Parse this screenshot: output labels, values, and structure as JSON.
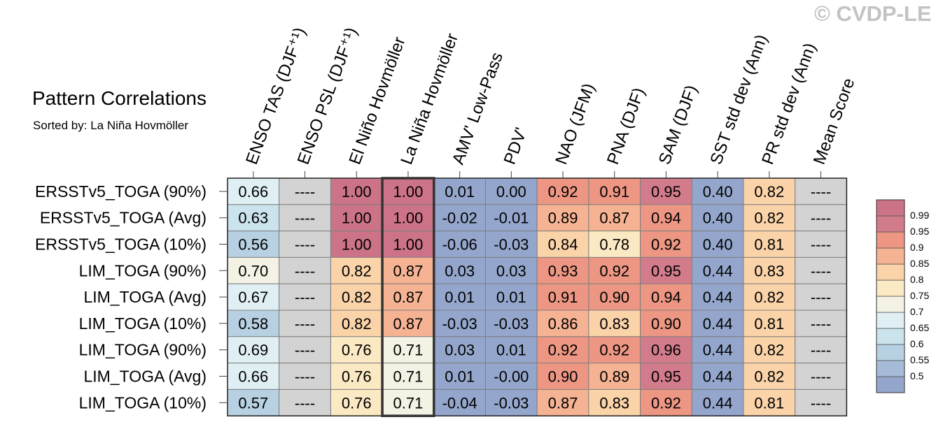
{
  "watermark": "© CVDP-LE",
  "title": "Pattern Correlations",
  "subtitle": "Sorted by: La Niña Hovmöller",
  "chart_data": {
    "type": "heatmap",
    "columns": [
      "ENSO TAS (DJF⁺¹)",
      "ENSO PSL (DJF⁺¹)",
      "El Niño Hovmöller",
      "La Niña Hovmöller",
      "AMV' Low-Pass",
      "PDV'",
      "NAO (JFM)",
      "PNA (DJF)",
      "SAM (DJF)",
      "SST std dev (Ann)",
      "PR std dev (Ann)",
      "Mean Score"
    ],
    "rows": [
      "ERSSTv5_TOGA (90%)",
      "ERSSTv5_TOGA (Avg)",
      "ERSSTv5_TOGA (10%)",
      "LIM_TOGA (90%)",
      "LIM_TOGA (Avg)",
      "LIM_TOGA (10%)",
      "LIM_TOGA (90%)",
      "LIM_TOGA (Avg)",
      "LIM_TOGA (10%)"
    ],
    "values": [
      [
        "0.66",
        "----",
        "1.00",
        "1.00",
        "0.01",
        "0.00",
        "0.92",
        "0.91",
        "0.95",
        "0.40",
        "0.82",
        "----"
      ],
      [
        "0.63",
        "----",
        "1.00",
        "1.00",
        "-0.02",
        "-0.01",
        "0.89",
        "0.87",
        "0.94",
        "0.40",
        "0.82",
        "----"
      ],
      [
        "0.56",
        "----",
        "1.00",
        "1.00",
        "-0.06",
        "-0.03",
        "0.84",
        "0.78",
        "0.92",
        "0.40",
        "0.81",
        "----"
      ],
      [
        "0.70",
        "----",
        "0.82",
        "0.87",
        "0.03",
        "0.03",
        "0.93",
        "0.92",
        "0.95",
        "0.44",
        "0.83",
        "----"
      ],
      [
        "0.67",
        "----",
        "0.82",
        "0.87",
        "0.01",
        "0.01",
        "0.91",
        "0.90",
        "0.94",
        "0.44",
        "0.82",
        "----"
      ],
      [
        "0.58",
        "----",
        "0.82",
        "0.87",
        "-0.03",
        "-0.03",
        "0.86",
        "0.83",
        "0.90",
        "0.44",
        "0.81",
        "----"
      ],
      [
        "0.69",
        "----",
        "0.76",
        "0.71",
        "0.03",
        "0.01",
        "0.92",
        "0.92",
        "0.96",
        "0.44",
        "0.82",
        "----"
      ],
      [
        "0.66",
        "----",
        "0.76",
        "0.71",
        "0.01",
        "-0.00",
        "0.90",
        "0.89",
        "0.95",
        "0.44",
        "0.82",
        "----"
      ],
      [
        "0.57",
        "----",
        "0.76",
        "0.71",
        "-0.04",
        "-0.03",
        "0.87",
        "0.83",
        "0.92",
        "0.44",
        "0.81",
        "----"
      ]
    ],
    "highlighted_column": "La Niña Hovmöller",
    "missing_color": "#d3d3d3",
    "colorbar": {
      "labels": [
        "0.99",
        "0.95",
        "0.9",
        "0.85",
        "0.8",
        "0.75",
        "0.7",
        "0.65",
        "0.6",
        "0.55",
        "0.5"
      ],
      "thresholds": [
        0.5,
        0.55,
        0.6,
        0.65,
        0.7,
        0.75,
        0.8,
        0.85,
        0.9,
        0.95,
        0.99
      ],
      "colors": [
        "#94a6cc",
        "#a5bbd7",
        "#b7d1e2",
        "#cae3ed",
        "#e0eff4",
        "#f3f2e4",
        "#fbe9c3",
        "#fad3a9",
        "#f5b393",
        "#ec9683",
        "#d27c8b",
        "#cc7387"
      ]
    }
  }
}
